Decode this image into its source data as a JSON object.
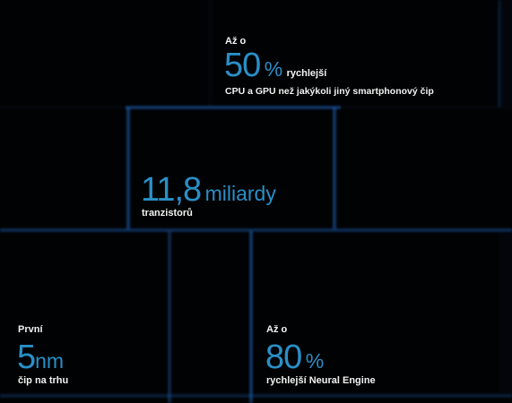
{
  "stat_fast": {
    "pre": "Až o",
    "value": "50",
    "unit": "%",
    "suffix": "rychlejší",
    "desc": "CPU a GPU než jakýkoli jiný smartphonový čip"
  },
  "stat_transistors": {
    "value": "11,8",
    "unit": "miliardy",
    "desc": "tranzistorů"
  },
  "stat_5nm": {
    "pre": "První",
    "value": "5",
    "unit": "nm",
    "desc": "čip na trhu"
  },
  "stat_neural": {
    "pre": "Až o",
    "value": "80",
    "unit": "%",
    "desc": "rychlejší Neural Engine"
  },
  "colors": {
    "accent": "#2a8fc7",
    "text": "#f2f2f2",
    "glow": "#2878dc"
  }
}
